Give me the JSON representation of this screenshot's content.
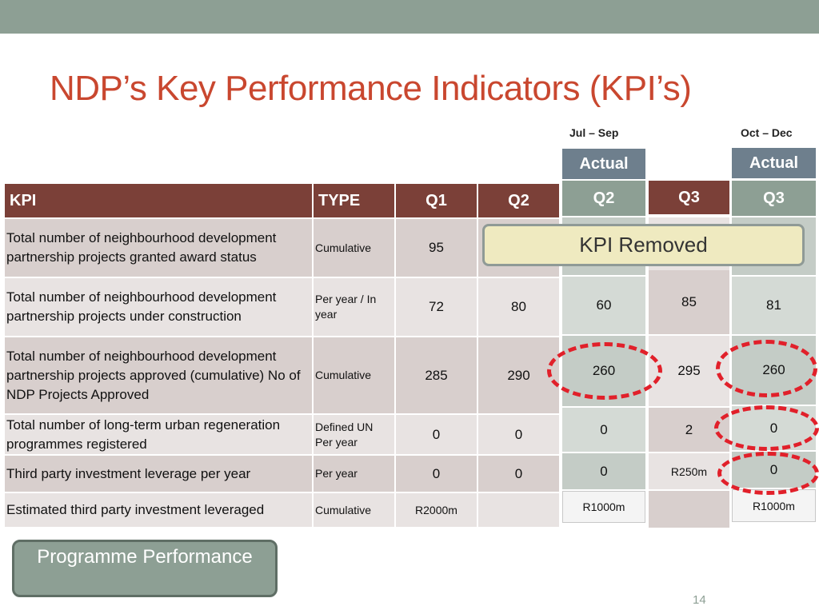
{
  "slide": {
    "title": "NDP’s Key Performance Indicators (KPI’s)",
    "page_number": "14"
  },
  "periods": {
    "jul_sep": "Jul – Sep",
    "oct_dec": "Oct – Dec"
  },
  "columns": {
    "actual": "Actual",
    "kpi": "KPI",
    "type": "TYPE",
    "q1": "Q1",
    "q2": "Q2",
    "q3": "Q3"
  },
  "rows": [
    {
      "kpi": "Total number of neighbourhood development partnership projects granted award status",
      "type": "Cumulative",
      "q1": "95",
      "q2": "",
      "actual_q2": "",
      "q3": "",
      "actual_q3": ""
    },
    {
      "kpi": "Total number of neighbourhood development partnership projects under construction",
      "type": "Per year / In year",
      "q1": "72",
      "q2": "80",
      "actual_q2": "60",
      "q3": "85",
      "actual_q3": "81"
    },
    {
      "kpi": "Total number of neighbourhood development partnership projects approved (cumulative) No of NDP Projects Approved",
      "type": "Cumulative",
      "q1": "285",
      "q2": "290",
      "actual_q2": "260",
      "q3": "295",
      "actual_q3": "260"
    },
    {
      "kpi": "Total number of long-term urban regeneration programmes registered",
      "type": "Defined UN Per year",
      "q1": "0",
      "q2": "0",
      "actual_q2": "0",
      "q3": "2",
      "actual_q3": "0"
    },
    {
      "kpi": "Third party investment leverage per year",
      "type": "Per year",
      "q1": "0",
      "q2": "0",
      "actual_q2": "0",
      "q3": "R250m",
      "actual_q3": "0"
    },
    {
      "kpi": "Estimated third party investment leveraged",
      "type": "Cumulative",
      "q1": "R2000m",
      "q2": "",
      "actual_q2": "R1000m",
      "q3": "",
      "actual_q3": "R1000m"
    }
  ],
  "callout": "KPI Removed",
  "button": "Programme Performance",
  "colors": {
    "title": "#c9472f",
    "header": "#7b4038",
    "accent": "#8d9f94",
    "actual_header": "#6e7f8d",
    "highlight": "#e1202a"
  }
}
